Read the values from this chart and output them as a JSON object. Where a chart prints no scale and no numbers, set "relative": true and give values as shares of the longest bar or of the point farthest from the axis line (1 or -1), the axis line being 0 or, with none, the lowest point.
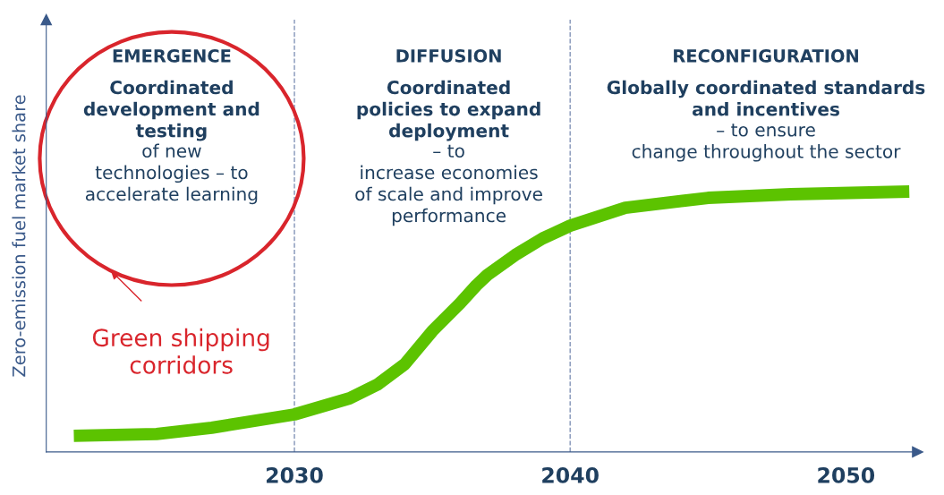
{
  "chart_data": {
    "type": "line",
    "relative": true,
    "ylabel": "Zero-emission fuel market share",
    "xlim": [
      2021,
      2052.6
    ],
    "xticks": [
      2030,
      2040,
      2050
    ],
    "x": [
      2022,
      2025,
      2027,
      2030,
      2032,
      2033,
      2034,
      2035,
      2036,
      2036.6,
      2037,
      2038,
      2039,
      2040,
      2042,
      2045,
      2048,
      2052.3
    ],
    "series": [
      {
        "color": "#5cc300",
        "values": [
          0.062,
          0.069,
          0.093,
          0.144,
          0.206,
          0.258,
          0.337,
          0.464,
          0.57,
          0.64,
          0.68,
          0.756,
          0.82,
          0.869,
          0.938,
          0.976,
          0.99,
          1
        ]
      }
    ],
    "line_style": "solid",
    "marker": "none",
    "grid": false,
    "legend": false,
    "tick_labels": "x",
    "ref_lines": [
      {
        "axis": "x",
        "value": 2030,
        "color": "#8394b8",
        "line_style": "dashed"
      },
      {
        "axis": "x",
        "value": 2040,
        "color": "#8394b8",
        "line_style": "dashed"
      }
    ],
    "annotations": [
      "EMERGENCE",
      "DIFFUSION",
      "RECONFIGURATION",
      "Coordinated\ndevelopment and\ntesting",
      "of new\ntechnologies – to\naccelerate learning",
      "Coordinated\npolicies to expand\ndeployment",
      "– to\nincrease economies\nof scale and improve\nperformance",
      "Globally coordinated standards\nand incentives",
      "– to ensure\nchange throughout the sector",
      "Green shipping\ncorridors"
    ]
  }
}
